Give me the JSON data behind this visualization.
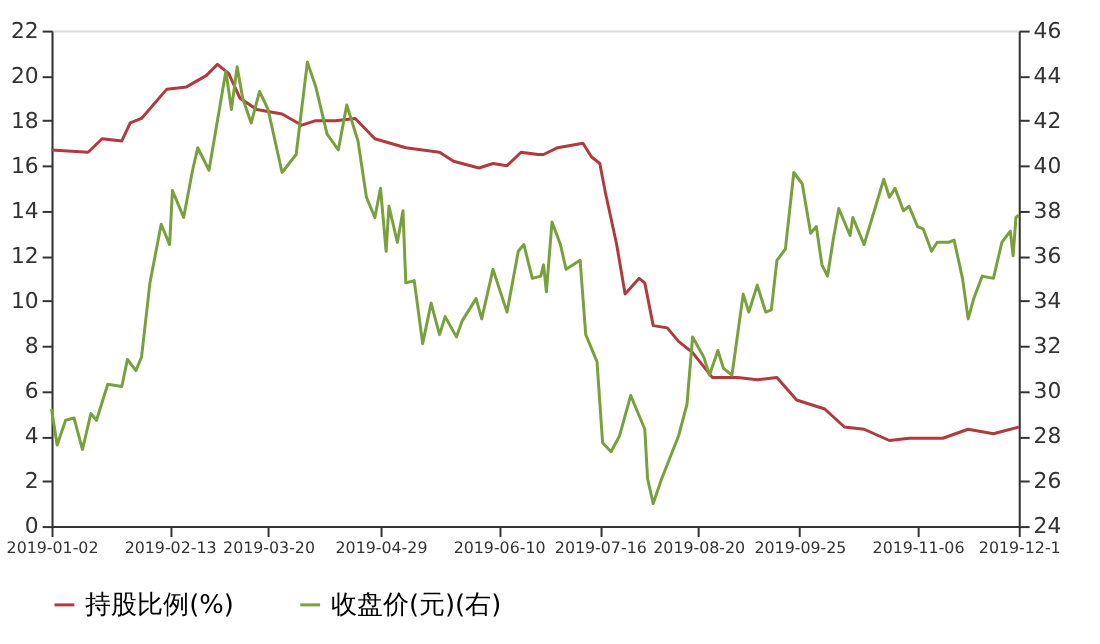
{
  "chart_data": {
    "type": "line",
    "legend": "bottom",
    "grid": false,
    "line_style": "solid",
    "marker": "none",
    "xlim": [
      "2019-01-02",
      "2019-12-12"
    ],
    "xticks": [
      "2019-01-02",
      "2019-02-13",
      "2019-03-20",
      "2019-04-29",
      "2019-06-10",
      "2019-07-16",
      "2019-08-20",
      "2019-09-25",
      "2019-11-06",
      {
        "value": "2019-12-12",
        "label": "2019-12-1"
      }
    ],
    "ylim": [
      0,
      22
    ],
    "yticks": [
      0,
      2,
      4,
      6,
      8,
      10,
      12,
      14,
      16,
      18,
      20,
      22
    ],
    "y2lim": [
      24,
      46
    ],
    "y2ticks": [
      24,
      26,
      28,
      30,
      32,
      34,
      36,
      38,
      40,
      42,
      44,
      46
    ],
    "series": [
      {
        "name": "持股比例(%)",
        "color": "#b03a3e",
        "x": [
          "2019-01-02",
          "2019-01-15",
          "2019-01-20",
          "2019-01-27",
          "2019-01-30",
          "2019-02-03",
          "2019-02-12",
          "2019-02-19",
          "2019-02-26",
          "2019-03-02",
          "2019-03-06",
          "2019-03-10",
          "2019-03-16",
          "2019-03-25",
          "2019-04-01",
          "2019-04-06",
          "2019-04-13",
          "2019-04-20",
          "2019-04-27",
          "2019-05-08",
          "2019-05-20",
          "2019-05-25",
          "2019-06-03",
          "2019-06-08",
          "2019-06-13",
          "2019-06-18",
          "2019-06-24",
          "2019-06-26",
          "2019-07-01",
          "2019-07-10",
          "2019-07-13",
          "2019-07-16",
          "2019-07-18",
          "2019-07-22",
          "2019-07-25",
          "2019-07-30",
          "2019-08-01",
          "2019-08-04",
          "2019-08-09",
          "2019-08-13",
          "2019-08-18",
          "2019-08-25",
          "2019-09-03",
          "2019-09-10",
          "2019-09-17",
          "2019-09-24",
          "2019-10-04",
          "2019-10-11",
          "2019-10-18",
          "2019-10-27",
          "2019-11-03",
          "2019-11-15",
          "2019-11-24",
          "2019-12-03",
          "2019-12-12"
        ],
        "values": [
          16.7,
          16.6,
          17.2,
          17.1,
          17.9,
          18.1,
          19.4,
          19.5,
          20.0,
          20.5,
          20.1,
          19.0,
          18.5,
          18.3,
          17.8,
          18.0,
          18.0,
          18.1,
          17.2,
          16.8,
          16.6,
          16.2,
          15.9,
          16.1,
          16.0,
          16.6,
          16.5,
          16.5,
          16.8,
          17.0,
          16.4,
          16.1,
          14.8,
          12.5,
          10.3,
          11.0,
          10.8,
          8.9,
          8.8,
          8.2,
          7.7,
          6.6,
          6.6,
          6.5,
          6.6,
          5.6,
          5.2,
          4.4,
          4.3,
          3.8,
          3.9,
          3.9,
          4.3,
          4.1,
          4.4
        ]
      },
      {
        "name": "收盘价(元)(右)",
        "color": "#78a03c",
        "axis": "y2",
        "x": [
          "2019-01-02",
          "2019-01-04",
          "2019-01-07",
          "2019-01-10",
          "2019-01-13",
          "2019-01-16",
          "2019-01-18",
          "2019-01-22",
          "2019-01-27",
          "2019-01-29",
          "2019-02-01",
          "2019-02-03",
          "2019-02-06",
          "2019-02-10",
          "2019-02-13",
          "2019-02-14",
          "2019-02-18",
          "2019-02-21",
          "2019-02-23",
          "2019-02-27",
          "2019-03-02",
          "2019-03-05",
          "2019-03-07",
          "2019-03-09",
          "2019-03-11",
          "2019-03-14",
          "2019-03-17",
          "2019-03-20",
          "2019-03-25",
          "2019-03-30",
          "2019-04-03",
          "2019-04-06",
          "2019-04-10",
          "2019-04-14",
          "2019-04-17",
          "2019-04-21",
          "2019-04-24",
          "2019-04-27",
          "2019-04-29",
          "2019-05-01",
          "2019-05-02",
          "2019-05-05",
          "2019-05-07",
          "2019-05-08",
          "2019-05-11",
          "2019-05-14",
          "2019-05-17",
          "2019-05-20",
          "2019-05-22",
          "2019-05-26",
          "2019-05-28",
          "2019-06-02",
          "2019-06-04",
          "2019-06-08",
          "2019-06-13",
          "2019-06-17",
          "2019-06-19",
          "2019-06-22",
          "2019-06-25",
          "2019-06-26",
          "2019-06-27",
          "2019-06-29",
          "2019-07-02",
          "2019-07-04",
          "2019-07-09",
          "2019-07-11",
          "2019-07-15",
          "2019-07-17",
          "2019-07-20",
          "2019-07-23",
          "2019-07-27",
          "2019-08-01",
          "2019-08-02",
          "2019-08-04",
          "2019-08-07",
          "2019-08-13",
          "2019-08-16",
          "2019-08-18",
          "2019-08-22",
          "2019-08-24",
          "2019-08-27",
          "2019-08-29",
          "2019-09-01",
          "2019-09-05",
          "2019-09-07",
          "2019-09-10",
          "2019-09-13",
          "2019-09-15",
          "2019-09-17",
          "2019-09-20",
          "2019-09-23",
          "2019-09-26",
          "2019-09-29",
          "2019-10-01",
          "2019-10-03",
          "2019-10-05",
          "2019-10-07",
          "2019-10-09",
          "2019-10-13",
          "2019-10-14",
          "2019-10-18",
          "2019-10-25",
          "2019-10-27",
          "2019-10-29",
          "2019-11-01",
          "2019-11-03",
          "2019-11-06",
          "2019-11-08",
          "2019-11-11",
          "2019-11-13",
          "2019-11-17",
          "2019-11-19",
          "2019-11-22",
          "2019-11-24",
          "2019-11-26",
          "2019-11-29",
          "2019-12-03",
          "2019-12-06",
          "2019-12-09",
          "2019-12-10",
          "2019-12-11",
          "2019-12-12"
        ],
        "values": [
          29.2,
          27.6,
          28.7,
          28.8,
          27.4,
          29.0,
          28.7,
          30.3,
          30.2,
          31.4,
          30.9,
          31.5,
          34.8,
          37.4,
          36.5,
          38.9,
          37.7,
          39.7,
          40.8,
          39.8,
          42.0,
          44.2,
          42.5,
          44.4,
          43.0,
          41.9,
          43.3,
          42.5,
          39.7,
          40.5,
          44.6,
          43.5,
          41.4,
          40.7,
          42.7,
          41.1,
          38.6,
          37.7,
          39.0,
          36.2,
          38.2,
          36.6,
          38.0,
          34.8,
          34.9,
          32.1,
          33.9,
          32.5,
          33.3,
          32.4,
          33.1,
          34.1,
          33.2,
          35.4,
          33.5,
          36.2,
          36.5,
          35.0,
          35.1,
          35.6,
          34.4,
          37.5,
          36.5,
          35.4,
          35.8,
          32.5,
          31.3,
          27.7,
          27.3,
          28.0,
          29.8,
          28.3,
          26.1,
          25.0,
          26.1,
          28.0,
          29.4,
          32.4,
          31.5,
          30.7,
          31.8,
          31.0,
          30.7,
          34.3,
          33.5,
          34.7,
          33.5,
          33.6,
          35.8,
          36.3,
          39.7,
          39.2,
          37.0,
          37.3,
          35.6,
          35.1,
          36.7,
          38.1,
          36.9,
          37.7,
          36.5,
          39.4,
          38.6,
          39.0,
          38.0,
          38.2,
          37.3,
          37.2,
          36.2,
          36.6,
          36.6,
          36.7,
          35.0,
          33.2,
          34.1,
          35.1,
          35.0,
          36.6,
          37.1,
          36.0,
          37.7,
          37.8
        ]
      }
    ]
  }
}
